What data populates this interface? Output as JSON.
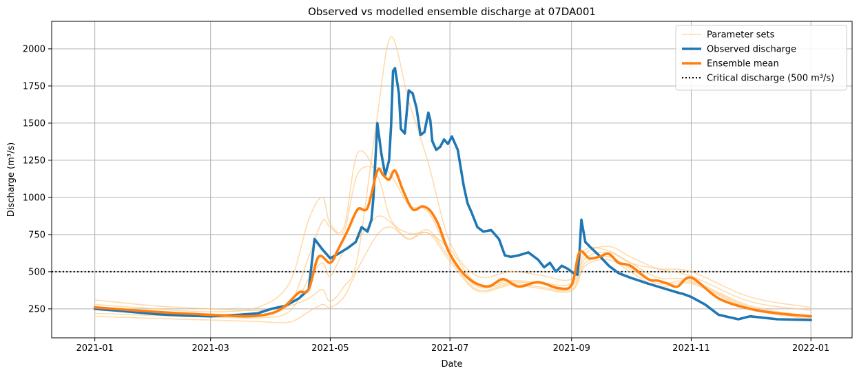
{
  "chart_data": {
    "type": "line",
    "title": "Observed vs modelled ensemble discharge at 07DA001",
    "xlabel": "Date",
    "ylabel": "Discharge (m³/s)",
    "x_ticks": [
      "2021-01",
      "2021-03",
      "2021-05",
      "2021-07",
      "2021-09",
      "2021-11",
      "2022-01"
    ],
    "y_ticks": [
      250,
      500,
      750,
      1000,
      1250,
      1500,
      1750,
      2000
    ],
    "xlim": [
      "2020-12-10",
      "2022-01-22"
    ],
    "ylim": [
      55,
      2185
    ],
    "grid": true,
    "legend_position": "top-right",
    "reference_line": {
      "label": "Critical discharge (500 m³/s)",
      "value": 500,
      "color": "#000000",
      "style": "dotted"
    },
    "series": [
      {
        "name": "Parameter sets",
        "role": "ensemble-members",
        "color": "#ffc374",
        "members": [
          {
            "x": [
              "2021-01-01",
              "2021-02-01",
              "2021-03-01",
              "2021-03-25",
              "2021-04-10",
              "2021-04-20",
              "2021-04-27",
              "2021-05-01",
              "2021-05-08",
              "2021-05-15",
              "2021-05-25",
              "2021-06-01",
              "2021-06-10",
              "2021-06-20",
              "2021-07-01",
              "2021-07-15",
              "2021-08-01",
              "2021-08-15",
              "2021-09-01",
              "2021-09-08",
              "2021-09-20",
              "2021-10-01",
              "2021-10-15",
              "2021-11-01",
              "2021-12-01",
              "2022-01-01"
            ],
            "y": [
              310,
              270,
              250,
              240,
              270,
              320,
              380,
              300,
              400,
              600,
              1550,
              2080,
              1650,
              1230,
              700,
              470,
              500,
              480,
              450,
              650,
              640,
              560,
              520,
              500,
              330,
              260
            ]
          },
          {
            "x": [
              "2021-01-01",
              "2021-02-01",
              "2021-03-01",
              "2021-03-25",
              "2021-04-10",
              "2021-04-20",
              "2021-04-27",
              "2021-05-01",
              "2021-05-08",
              "2021-05-15",
              "2021-05-25",
              "2021-06-01",
              "2021-06-10",
              "2021-06-20",
              "2021-07-01",
              "2021-07-15",
              "2021-08-01",
              "2021-08-15",
              "2021-09-01",
              "2021-09-08",
              "2021-09-20",
              "2021-10-01",
              "2021-10-15",
              "2021-11-01",
              "2021-12-01",
              "2022-01-01"
            ],
            "y": [
              280,
              250,
              230,
              260,
              420,
              850,
              1000,
              820,
              800,
              1300,
              1150,
              850,
              760,
              760,
              650,
              420,
              440,
              430,
              420,
              620,
              670,
              600,
              520,
              470,
              300,
              240
            ]
          },
          {
            "x": [
              "2021-01-01",
              "2021-02-01",
              "2021-03-01",
              "2021-03-25",
              "2021-04-10",
              "2021-04-20",
              "2021-04-27",
              "2021-05-01",
              "2021-05-08",
              "2021-05-15",
              "2021-05-25",
              "2021-06-01",
              "2021-06-10",
              "2021-06-20",
              "2021-07-01",
              "2021-07-15",
              "2021-08-01",
              "2021-08-15",
              "2021-09-01",
              "2021-09-08",
              "2021-09-20",
              "2021-10-01",
              "2021-10-15",
              "2021-11-01",
              "2021-12-01",
              "2022-01-01"
            ],
            "y": [
              250,
              230,
              215,
              210,
              280,
              600,
              840,
              800,
              770,
              1160,
              1200,
              1150,
              950,
              900,
              620,
              400,
              430,
              420,
              400,
              590,
              630,
              560,
              460,
              440,
              270,
              200
            ]
          },
          {
            "x": [
              "2021-01-01",
              "2021-02-01",
              "2021-03-01",
              "2021-03-25",
              "2021-04-10",
              "2021-04-20",
              "2021-04-27",
              "2021-05-01",
              "2021-05-08",
              "2021-05-15",
              "2021-05-25",
              "2021-06-01",
              "2021-06-10",
              "2021-06-20",
              "2021-07-01",
              "2021-07-15",
              "2021-08-01",
              "2021-08-15",
              "2021-09-01",
              "2021-09-08",
              "2021-09-20",
              "2021-10-01",
              "2021-10-15",
              "2021-11-01",
              "2021-12-01",
              "2022-01-01"
            ],
            "y": [
              220,
              205,
              195,
              190,
              230,
              450,
              560,
              470,
              640,
              720,
              870,
              830,
              720,
              780,
              590,
              380,
              420,
              400,
              380,
              560,
              600,
              520,
              420,
              430,
              260,
              190
            ]
          },
          {
            "x": [
              "2021-01-01",
              "2021-02-01",
              "2021-03-01",
              "2021-03-25",
              "2021-04-10",
              "2021-04-20",
              "2021-04-27",
              "2021-05-01",
              "2021-05-08",
              "2021-05-15",
              "2021-05-25",
              "2021-06-01",
              "2021-06-10",
              "2021-06-20",
              "2021-07-01",
              "2021-07-15",
              "2021-08-01",
              "2021-08-15",
              "2021-09-01",
              "2021-09-08",
              "2021-09-20",
              "2021-10-01",
              "2021-10-15",
              "2021-11-01",
              "2021-12-01",
              "2022-01-01"
            ],
            "y": [
              200,
              185,
              175,
              165,
              160,
              230,
              280,
              260,
              330,
              520,
              750,
              800,
              720,
              760,
              570,
              370,
              410,
              390,
              370,
              540,
              580,
              500,
              400,
              420,
              250,
              180
            ]
          }
        ]
      },
      {
        "name": "Observed discharge",
        "role": "observed",
        "color": "#1f77b4",
        "x": [
          "2021-01-01",
          "2021-01-15",
          "2021-02-01",
          "2021-02-15",
          "2021-03-01",
          "2021-03-15",
          "2021-03-25",
          "2021-04-01",
          "2021-04-08",
          "2021-04-15",
          "2021-04-20",
          "2021-04-23",
          "2021-04-27",
          "2021-05-01",
          "2021-05-05",
          "2021-05-10",
          "2021-05-14",
          "2021-05-17",
          "2021-05-20",
          "2021-05-22",
          "2021-05-23",
          "2021-05-25",
          "2021-05-27",
          "2021-05-29",
          "2021-05-31",
          "2021-06-01",
          "2021-06-02",
          "2021-06-03",
          "2021-06-05",
          "2021-06-06",
          "2021-06-08",
          "2021-06-10",
          "2021-06-12",
          "2021-06-14",
          "2021-06-16",
          "2021-06-18",
          "2021-06-20",
          "2021-06-21",
          "2021-06-22",
          "2021-06-24",
          "2021-06-26",
          "2021-06-28",
          "2021-06-30",
          "2021-07-02",
          "2021-07-05",
          "2021-07-08",
          "2021-07-10",
          "2021-07-12",
          "2021-07-15",
          "2021-07-18",
          "2021-07-22",
          "2021-07-26",
          "2021-07-29",
          "2021-08-01",
          "2021-08-05",
          "2021-08-10",
          "2021-08-15",
          "2021-08-18",
          "2021-08-21",
          "2021-08-24",
          "2021-08-27",
          "2021-08-30",
          "2021-09-02",
          "2021-09-04",
          "2021-09-05",
          "2021-09-06",
          "2021-09-08",
          "2021-09-11",
          "2021-09-15",
          "2021-09-20",
          "2021-09-25",
          "2021-10-01",
          "2021-10-10",
          "2021-10-20",
          "2021-10-25",
          "2021-10-28",
          "2021-11-01",
          "2021-11-08",
          "2021-11-15",
          "2021-11-25",
          "2021-12-01",
          "2021-12-15",
          "2022-01-01"
        ],
        "y": [
          250,
          235,
          215,
          205,
          200,
          210,
          220,
          250,
          270,
          320,
          380,
          720,
          650,
          590,
          620,
          660,
          700,
          800,
          770,
          850,
          1000,
          1500,
          1300,
          1150,
          1250,
          1480,
          1850,
          1870,
          1700,
          1460,
          1430,
          1720,
          1700,
          1600,
          1420,
          1440,
          1570,
          1520,
          1380,
          1320,
          1340,
          1390,
          1360,
          1410,
          1320,
          1080,
          960,
          900,
          800,
          770,
          780,
          720,
          610,
          600,
          610,
          630,
          580,
          530,
          560,
          500,
          540,
          520,
          490,
          480,
          620,
          850,
          700,
          660,
          610,
          540,
          490,
          460,
          420,
          380,
          360,
          350,
          330,
          280,
          210,
          180,
          200,
          180,
          175
        ]
      },
      {
        "name": "Ensemble mean",
        "role": "mean",
        "color": "#ff7f0e",
        "x": [
          "2021-01-01",
          "2021-02-01",
          "2021-03-01",
          "2021-03-20",
          "2021-04-01",
          "2021-04-08",
          "2021-04-15",
          "2021-04-20",
          "2021-04-25",
          "2021-05-01",
          "2021-05-05",
          "2021-05-10",
          "2021-05-15",
          "2021-05-20",
          "2021-05-25",
          "2021-05-28",
          "2021-05-31",
          "2021-06-03",
          "2021-06-07",
          "2021-06-12",
          "2021-06-17",
          "2021-06-21",
          "2021-06-25",
          "2021-07-01",
          "2021-07-10",
          "2021-07-20",
          "2021-07-28",
          "2021-08-05",
          "2021-08-15",
          "2021-08-25",
          "2021-09-01",
          "2021-09-05",
          "2021-09-10",
          "2021-09-15",
          "2021-09-20",
          "2021-09-25",
          "2021-10-01",
          "2021-10-10",
          "2021-10-15",
          "2021-10-20",
          "2021-10-25",
          "2021-11-01",
          "2021-11-15",
          "2021-12-01",
          "2021-12-15",
          "2022-01-01"
        ],
        "y": [
          260,
          230,
          210,
          200,
          220,
          270,
          360,
          380,
          600,
          560,
          650,
          780,
          920,
          930,
          1180,
          1150,
          1120,
          1180,
          1050,
          920,
          940,
          910,
          820,
          620,
          460,
          400,
          450,
          400,
          430,
          390,
          410,
          630,
          590,
          600,
          620,
          560,
          540,
          450,
          440,
          420,
          400,
          460,
          320,
          250,
          220,
          200
        ]
      }
    ]
  }
}
